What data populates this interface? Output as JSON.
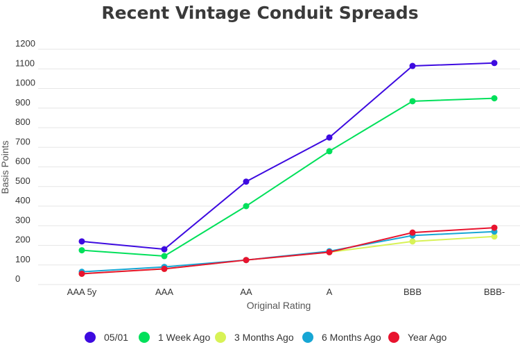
{
  "chart_data": {
    "type": "line",
    "title": "Recent Vintage Conduit Spreads",
    "xlabel": "Original Rating",
    "ylabel": "Basis Points",
    "categories": [
      "AAA 5y",
      "AAA",
      "AA",
      "A",
      "BBB",
      "BBB-"
    ],
    "y_ticks": [
      "0",
      "100",
      "200",
      "300",
      "400",
      "500",
      "600",
      "700",
      "800",
      "900",
      "1000",
      "1100",
      "1200"
    ],
    "ylim": [
      0,
      1200
    ],
    "grid": true,
    "legend_position": "bottom",
    "series": [
      {
        "name": "05/01",
        "color": "#3d0ae0",
        "values": [
          220,
          180,
          525,
          750,
          1115,
          1130
        ]
      },
      {
        "name": "1 Week Ago",
        "color": "#00e05a",
        "values": [
          175,
          145,
          400,
          680,
          935,
          950
        ]
      },
      {
        "name": "3 Months Ago",
        "color": "#d8f256",
        "values": [
          55,
          80,
          125,
          165,
          220,
          245
        ]
      },
      {
        "name": "6 Months Ago",
        "color": "#17a6d4",
        "values": [
          65,
          90,
          125,
          170,
          250,
          270
        ]
      },
      {
        "name": "Year Ago",
        "color": "#e8132e",
        "values": [
          55,
          80,
          125,
          165,
          265,
          290
        ]
      }
    ]
  }
}
